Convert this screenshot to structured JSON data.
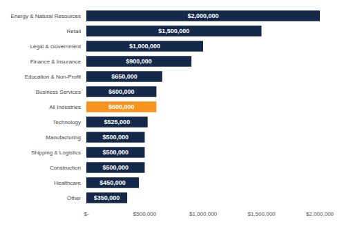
{
  "chart_data": {
    "type": "bar",
    "orientation": "horizontal",
    "categories": [
      "Energy & Natural Resources",
      "Retail",
      "Legal & Government",
      "Finance & Insurance",
      "Education & Non-Profit",
      "Business Services",
      "All Industries",
      "Technology",
      "Manufacturing",
      "Shipping & Logistics",
      "Construction",
      "Healthcare",
      "Other"
    ],
    "values": [
      2000000,
      1500000,
      1000000,
      900000,
      650000,
      600000,
      600000,
      525000,
      500000,
      500000,
      500000,
      450000,
      350000
    ],
    "value_labels": [
      "$2,000,000",
      "$1,500,000",
      "$1,000,000",
      "$900,000",
      "$650,000",
      "$600,000",
      "$600,000",
      "$525,000",
      "$500,000",
      "$500,000",
      "$500,000",
      "$450,000",
      "$350,000"
    ],
    "colors": [
      "#14284a",
      "#14284a",
      "#14284a",
      "#14284a",
      "#14284a",
      "#14284a",
      "#f7941d",
      "#14284a",
      "#14284a",
      "#14284a",
      "#14284a",
      "#14284a",
      "#14284a"
    ],
    "xlim": [
      0,
      2000000
    ],
    "xticks": [
      {
        "value": 0,
        "label": "$-"
      },
      {
        "value": 500000,
        "label": "$500,000"
      },
      {
        "value": 1000000,
        "label": "$1,000,000"
      },
      {
        "value": 1500000,
        "label": "$1,500,000"
      },
      {
        "value": 2000000,
        "label": "$2,000,000"
      }
    ],
    "data_labels": true,
    "grid": false
  }
}
